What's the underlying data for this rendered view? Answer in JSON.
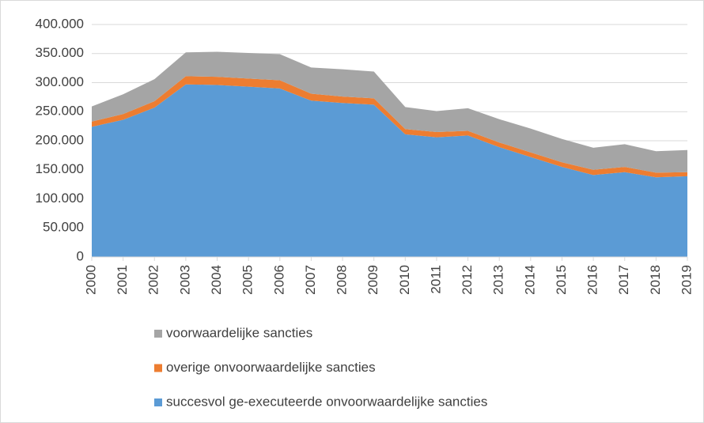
{
  "chart_data": {
    "type": "stacked_area",
    "categories": [
      "2000",
      "2001",
      "2002",
      "2003",
      "2004",
      "2005",
      "2006",
      "2007",
      "2008",
      "2009",
      "2010",
      "2011",
      "2012",
      "2013",
      "2014",
      "2015",
      "2016",
      "2017",
      "2018",
      "2019"
    ],
    "series": [
      {
        "name": "succesvol ge-executeerde onvoorwaardelijke sancties",
        "color": "#5b9bd5",
        "values": [
          224000,
          236000,
          257000,
          297000,
          296000,
          293000,
          290000,
          269000,
          265000,
          262000,
          211000,
          206000,
          209000,
          189000,
          172000,
          155000,
          141000,
          146000,
          137000,
          139000
        ]
      },
      {
        "name": "overige onvoorwaardelijke sancties",
        "color": "#ed7d31",
        "values": [
          9000,
          10000,
          11000,
          14000,
          14000,
          14000,
          14000,
          12000,
          11000,
          11000,
          9000,
          9000,
          8000,
          8000,
          8000,
          8000,
          9000,
          9000,
          8000,
          7000
        ]
      },
      {
        "name": "voorwaardelijke sancties",
        "color": "#a5a5a5",
        "values": [
          26000,
          34000,
          38000,
          41000,
          43000,
          44000,
          45000,
          45000,
          47000,
          46000,
          38000,
          36000,
          39000,
          40000,
          41000,
          40000,
          38000,
          39000,
          37000,
          38000
        ]
      }
    ],
    "ylim": [
      0,
      400000
    ],
    "yticks": [
      0,
      {
        "value": 50000,
        "label": "50.000"
      },
      {
        "value": 100000,
        "label": "100.000"
      },
      {
        "value": 150000,
        "label": "150.000"
      },
      {
        "value": 200000,
        "label": "200.000"
      },
      {
        "value": 250000,
        "label": "250.000"
      },
      {
        "value": 300000,
        "label": "300.000"
      },
      {
        "value": 350000,
        "label": "350.000"
      },
      {
        "value": 400000,
        "label": "400.000"
      }
    ],
    "grid": true
  }
}
